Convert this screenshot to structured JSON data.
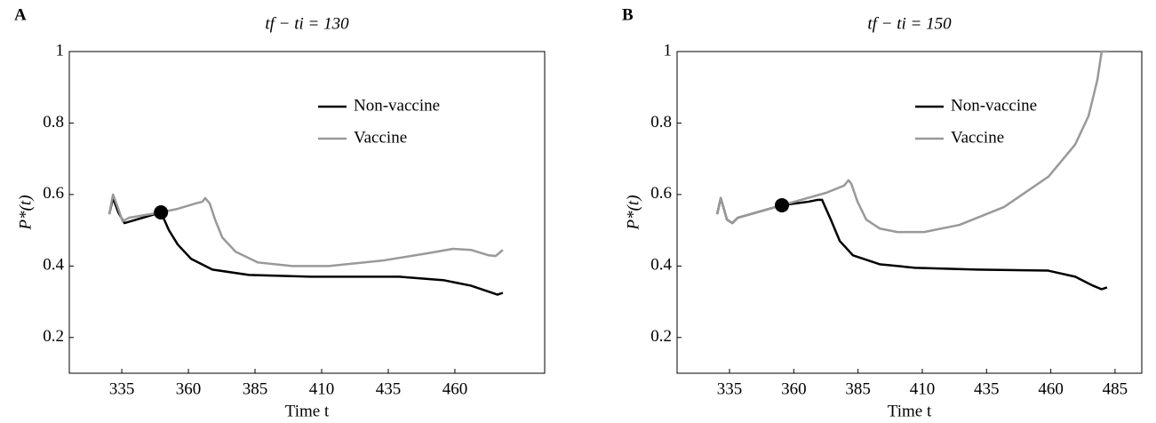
{
  "chart_data": [
    {
      "type": "line",
      "panel": "A",
      "title": "tf − ti = 130",
      "x_label": "Time t",
      "y_label": "P*(t)",
      "xlim": [
        315.3,
        493.7
      ],
      "ylim": [
        0.1,
        1
      ],
      "xticks": [
        335,
        360,
        385,
        410,
        435,
        460
      ],
      "yticks": [
        0.2,
        0.4,
        0.6,
        0.8,
        1
      ],
      "legend": "upper right",
      "series": [
        {
          "name": "Non-vaccine",
          "color": "#000000",
          "x": [
            330.3,
            331.7,
            333.7,
            336,
            349.7,
            352.7,
            356,
            361,
            369,
            382.7,
            406,
            439,
            456,
            466,
            476,
            478
          ],
          "values": [
            0.545,
            0.59,
            0.55,
            0.52,
            0.55,
            0.5,
            0.46,
            0.42,
            0.39,
            0.375,
            0.37,
            0.37,
            0.36,
            0.345,
            0.32,
            0.325
          ]
        },
        {
          "name": "Vaccine",
          "color": "#999999",
          "x": [
            330.3,
            331.7,
            333.7,
            335.3,
            337.7,
            349.7,
            356,
            362.7,
            365.3,
            366.3,
            368,
            370,
            372.7,
            377.7,
            386,
            399,
            412.7,
            432.7,
            449.3,
            459.3,
            466,
            472.7,
            475.3,
            478
          ],
          "values": [
            0.545,
            0.6,
            0.56,
            0.525,
            0.535,
            0.55,
            0.56,
            0.575,
            0.58,
            0.59,
            0.575,
            0.53,
            0.48,
            0.44,
            0.41,
            0.4,
            0.4,
            0.415,
            0.435,
            0.448,
            0.445,
            0.43,
            0.428,
            0.445
          ]
        }
      ],
      "marker": {
        "x": 349.7,
        "y": 0.55,
        "color": "#000000"
      }
    },
    {
      "type": "line",
      "panel": "B",
      "title": "tf − ti = 150",
      "x_label": "Time t",
      "y_label": "P*(t)",
      "xlim": [
        314.6,
        495.4
      ],
      "ylim": [
        0.1,
        1
      ],
      "xticks": [
        335,
        360,
        385,
        410,
        435,
        460,
        485
      ],
      "yticks": [
        0.2,
        0.4,
        0.6,
        0.8,
        1
      ],
      "legend": "upper right",
      "series": [
        {
          "name": "Non-vaccine",
          "color": "#000000",
          "x": [
            330.2,
            331.6,
            334,
            336.1,
            338.2,
            355.4,
            365.8,
            369.2,
            371,
            374.4,
            377.9,
            383,
            393.4,
            407.2,
            431.4,
            459,
            469.5,
            476.4,
            479.8,
            481.9
          ],
          "values": [
            0.545,
            0.59,
            0.53,
            0.52,
            0.535,
            0.57,
            0.58,
            0.585,
            0.585,
            0.53,
            0.47,
            0.43,
            0.405,
            0.395,
            0.39,
            0.387,
            0.37,
            0.345,
            0.335,
            0.34
          ]
        },
        {
          "name": "Vaccine",
          "color": "#999999",
          "x": [
            330.2,
            331.6,
            334,
            336.1,
            338.2,
            355.4,
            372.7,
            379.6,
            381.3,
            382.4,
            384.8,
            388.2,
            393.4,
            400.3,
            410.7,
            424.5,
            441.8,
            459.1,
            469.5,
            474.7,
            478.1,
            479.8,
            482.2
          ],
          "values": [
            0.545,
            0.59,
            0.53,
            0.52,
            0.535,
            0.57,
            0.605,
            0.625,
            0.64,
            0.63,
            0.58,
            0.53,
            0.505,
            0.495,
            0.495,
            0.515,
            0.565,
            0.65,
            0.74,
            0.82,
            0.92,
            1,
            1
          ]
        }
      ],
      "marker": {
        "x": 355.4,
        "y": 0.57,
        "color": "#000000"
      }
    }
  ]
}
